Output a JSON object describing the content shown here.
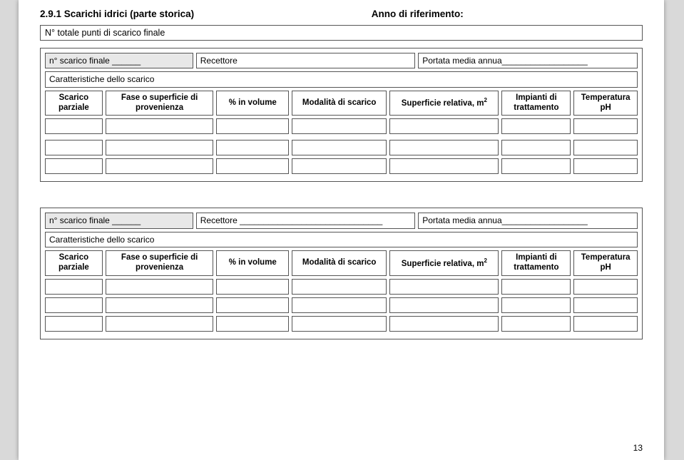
{
  "header": {
    "section_title": "2.9.1 Scarichi idrici (parte storica)",
    "anno_label": "Anno di riferimento:"
  },
  "totale_label": "N° totale punti di scarico finale",
  "row_labels": {
    "scarico_finale": "n° scarico finale ______",
    "recettore_blank": "Recettore ______________________________",
    "recettore": "Recettore",
    "portata": "Portata media annua__________________"
  },
  "caratteristiche": "Caratteristiche dello scarico",
  "cols": {
    "c1": "Scarico parziale",
    "c2": "Fase o superficie di provenienza",
    "c3": "% in volume",
    "c4": "Modalità di scarico",
    "c5": "Superficie relativa, m",
    "c5_sup": "2",
    "c6": "Impianti di trattamento",
    "c7": "Temperatura pH"
  },
  "page_number": "13"
}
